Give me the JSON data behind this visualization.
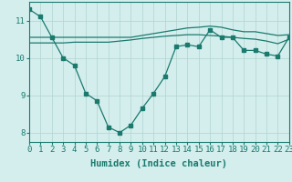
{
  "x": [
    0,
    1,
    2,
    3,
    4,
    5,
    6,
    7,
    8,
    9,
    10,
    11,
    12,
    13,
    14,
    15,
    16,
    17,
    18,
    19,
    20,
    21,
    22,
    23
  ],
  "line1": [
    11.3,
    11.1,
    10.55,
    10.0,
    9.8,
    9.05,
    8.85,
    8.15,
    8.0,
    8.2,
    8.65,
    9.05,
    9.5,
    10.3,
    10.35,
    10.3,
    10.75,
    10.55,
    10.55,
    10.2,
    10.2,
    10.1,
    10.05,
    10.55
  ],
  "line2": [
    10.55,
    10.55,
    10.55,
    10.55,
    10.55,
    10.55,
    10.55,
    10.55,
    10.55,
    10.55,
    10.6,
    10.65,
    10.7,
    10.75,
    10.8,
    10.82,
    10.85,
    10.82,
    10.75,
    10.7,
    10.7,
    10.65,
    10.6,
    10.62
  ],
  "line3": [
    10.4,
    10.4,
    10.4,
    10.4,
    10.42,
    10.42,
    10.42,
    10.42,
    10.45,
    10.48,
    10.52,
    10.55,
    10.58,
    10.6,
    10.62,
    10.62,
    10.6,
    10.58,
    10.55,
    10.52,
    10.5,
    10.45,
    10.38,
    10.5
  ],
  "line_color": "#1a7a6e",
  "bg_color": "#d4eeed",
  "grid_color": "#b0d4d0",
  "xlabel": "Humidex (Indice chaleur)",
  "ylim": [
    7.75,
    11.5
  ],
  "xlim": [
    0,
    23
  ],
  "yticks": [
    8,
    9,
    10,
    11
  ],
  "xticks": [
    0,
    1,
    2,
    3,
    4,
    5,
    6,
    7,
    8,
    9,
    10,
    11,
    12,
    13,
    14,
    15,
    16,
    17,
    18,
    19,
    20,
    21,
    22,
    23
  ],
  "xlabel_fontsize": 7.5,
  "tick_fontsize": 6.5,
  "marker_size": 2.5,
  "line_width": 0.9
}
